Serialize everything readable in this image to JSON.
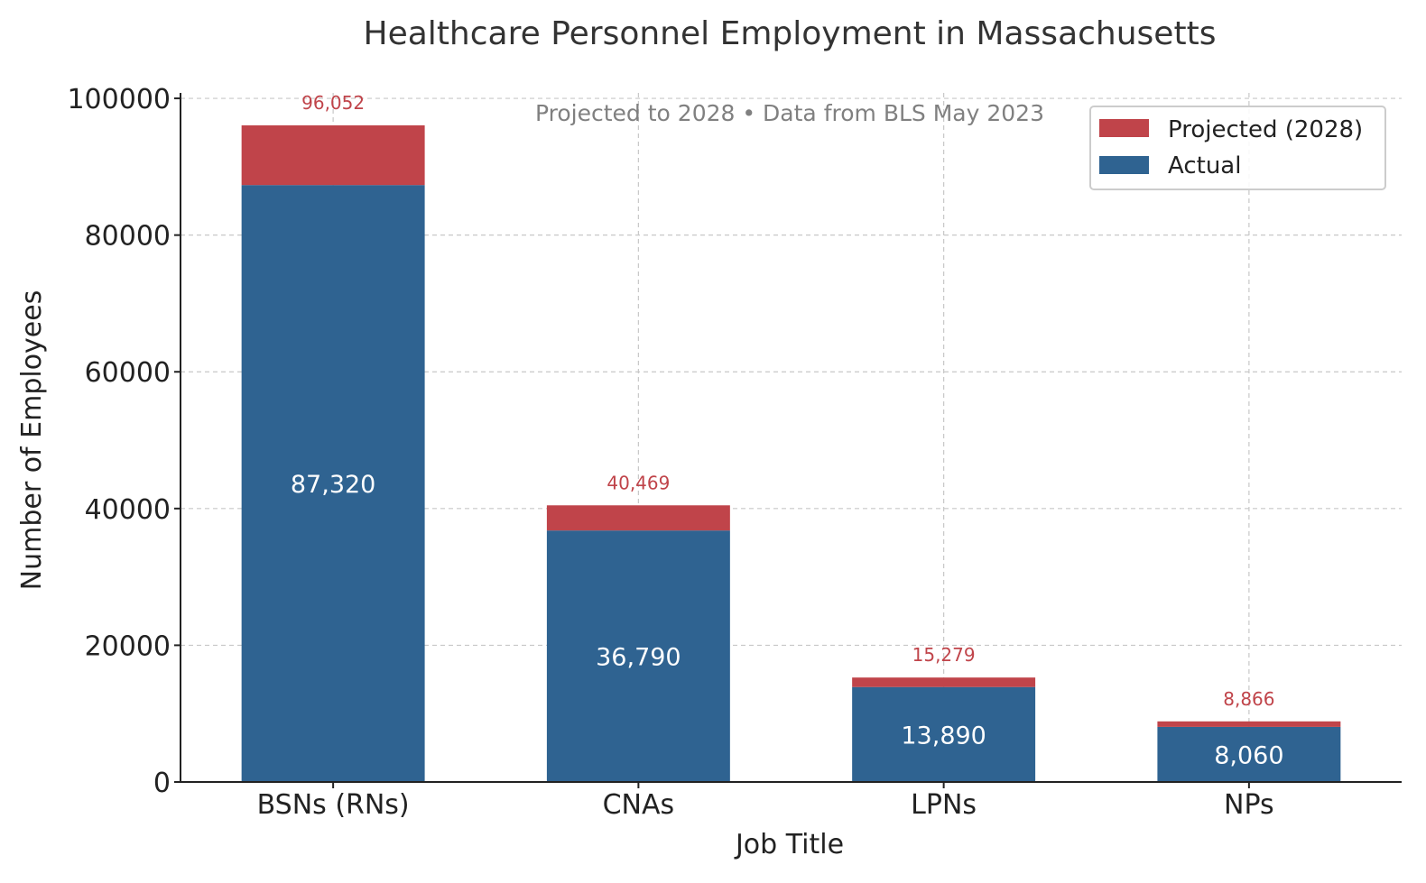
{
  "chart_data": {
    "type": "bar",
    "stacked": true,
    "title": "Healthcare Personnel Employment in Massachusetts",
    "subtitle": "Projected to 2028 • Data from BLS May 2023",
    "xlabel": "Job Title",
    "ylabel": "Number of Employees",
    "categories": [
      "BSNs (RNs)",
      "CNAs",
      "LPNs",
      "NPs"
    ],
    "series": [
      {
        "name": "Actual",
        "values": [
          87320,
          36790,
          13890,
          8060
        ],
        "color": "#2f6391"
      },
      {
        "name": "Projected (2028)",
        "values": [
          8732,
          3679,
          1389,
          806
        ],
        "color": "#c0444a"
      }
    ],
    "actual_labels": [
      "87,320",
      "36,790",
      "13,890",
      "8,060"
    ],
    "total_labels": [
      "96,052",
      "40,469",
      "15,279",
      "8,866"
    ],
    "yticks": [
      0,
      20000,
      40000,
      60000,
      80000,
      100000
    ],
    "ytick_labels": [
      "0",
      "20000",
      "40000",
      "60000",
      "80000",
      "100000"
    ],
    "ylim": [
      0,
      100800
    ],
    "grid": true,
    "legend_position": "top-right",
    "legend_order": [
      "Projected (2028)",
      "Actual"
    ]
  }
}
